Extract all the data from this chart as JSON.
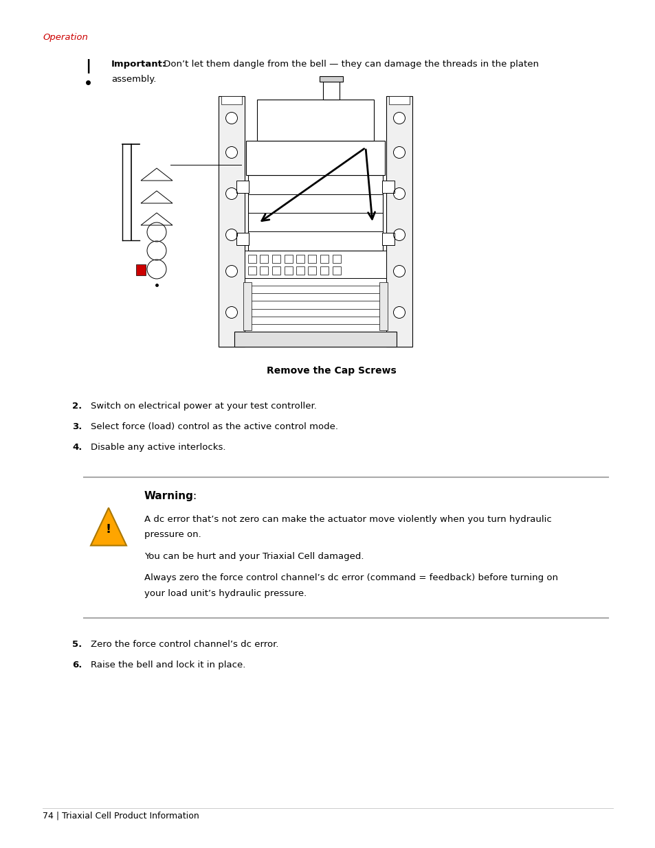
{
  "bg_color": "#ffffff",
  "page_width": 9.54,
  "page_height": 12.35,
  "dpi": 100,
  "section_label": "Operation",
  "section_label_color": "#cc0000",
  "important_bold": "Important:",
  "important_normal": " Don’t let them dangle from the bell — they can damage the threads in the platen",
  "important_line2": "assembly.",
  "figure_caption": "Remove the Cap Screws",
  "steps_1_4": [
    {
      "num": "2.",
      "text": "Switch on electrical power at your test controller."
    },
    {
      "num": "3.",
      "text": "Select force (load) control as the active control mode."
    },
    {
      "num": "4.",
      "text": "Disable any active interlocks."
    }
  ],
  "warning_title": "Warning",
  "warning_colon": ":",
  "warning_para1_line1": "A dc error that’s not zero can make the actuator move violently when you turn hydraulic",
  "warning_para1_line2": "pressure on.",
  "warning_para2": "You can be hurt and your Triaxial Cell damaged.",
  "warning_para3_line1": "Always zero the force control channel’s dc error (command = feedback) before turning on",
  "warning_para3_line2": "your load unit’s hydraulic pressure.",
  "steps_5_6": [
    {
      "num": "5.",
      "text": "Zero the force control channel’s dc error."
    },
    {
      "num": "6.",
      "text": "Raise the bell and lock it in place."
    }
  ],
  "footer": "74 | Triaxial Cell Product Information"
}
